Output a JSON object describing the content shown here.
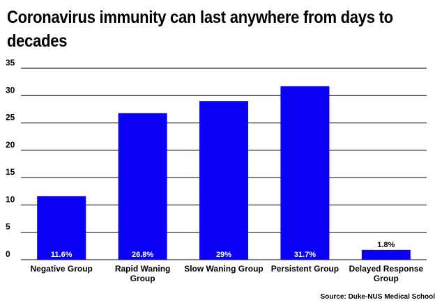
{
  "chart_data": {
    "type": "bar",
    "title": "Coronavirus immunity can last anywhere from days to decades",
    "categories": [
      "Negative Group",
      "Rapid Waning Group",
      "Slow Waning Group",
      "Persistent Group",
      "Delayed Response Group"
    ],
    "values": [
      11.6,
      26.8,
      29,
      31.7,
      1.8
    ],
    "data_labels": [
      "11.6%",
      "26.8%",
      "29%",
      "31.7%",
      "1.8%"
    ],
    "ylim": [
      0,
      35
    ],
    "yticks": [
      0,
      5,
      10,
      15,
      20,
      25,
      30,
      35
    ],
    "grid": true,
    "bar_color": "#0a00f5",
    "source": "Source: Duke-NUS Medical School"
  }
}
